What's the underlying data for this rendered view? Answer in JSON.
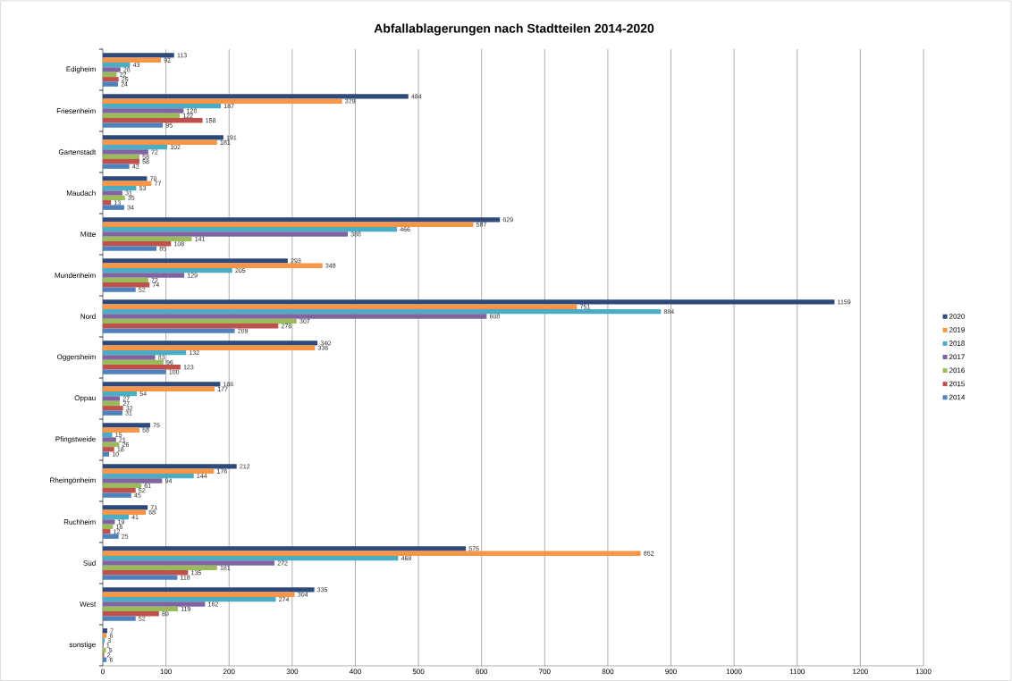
{
  "chart_data": {
    "type": "bar",
    "orientation": "horizontal",
    "title": "Abfallablagerungen nach Stadtteilen 2014-2020",
    "categories": [
      "Edigheim",
      "Friesenheim",
      "Gartenstadt",
      "Maudach",
      "Mitte",
      "Mundenheim",
      "Nord",
      "Oggersheim",
      "Oppau",
      "Pfingstweide",
      "Rheingönheim",
      "Ruchheim",
      "Süd",
      "West",
      "sonstige"
    ],
    "series": [
      {
        "name": "2020",
        "color": "#2e4a7a",
        "values": [
          113,
          484,
          191,
          70,
          629,
          293,
          1159,
          340,
          186,
          75,
          212,
          71,
          575,
          335,
          7
        ]
      },
      {
        "name": "2019",
        "color": "#f79646",
        "values": [
          92,
          379,
          181,
          77,
          587,
          348,
          751,
          336,
          177,
          58,
          176,
          68,
          852,
          304,
          6
        ]
      },
      {
        "name": "2018",
        "color": "#4bacc6",
        "values": [
          43,
          187,
          102,
          53,
          466,
          205,
          884,
          132,
          54,
          15,
          144,
          41,
          468,
          274,
          3
        ]
      },
      {
        "name": "2017",
        "color": "#8064a2",
        "values": [
          28,
          128,
          72,
          31,
          388,
          129,
          608,
          83,
          27,
          21,
          94,
          19,
          272,
          162,
          1
        ]
      },
      {
        "name": "2016",
        "color": "#9bbb59",
        "values": [
          22,
          122,
          58,
          35,
          141,
          72,
          307,
          96,
          27,
          26,
          61,
          16,
          181,
          119,
          5
        ]
      },
      {
        "name": "2015",
        "color": "#c0504d",
        "values": [
          25,
          158,
          58,
          13,
          108,
          74,
          278,
          123,
          32,
          18,
          52,
          12,
          135,
          89,
          2
        ]
      },
      {
        "name": "2014",
        "color": "#4f81bd",
        "values": [
          24,
          95,
          42,
          34,
          85,
          52,
          209,
          100,
          31,
          10,
          45,
          25,
          118,
          52,
          6
        ]
      }
    ],
    "xlim": [
      0,
      1300
    ],
    "xticks": [
      0,
      100,
      200,
      300,
      400,
      500,
      600,
      700,
      800,
      900,
      1000,
      1100,
      1200,
      1300
    ],
    "grid": "x",
    "legend": "right",
    "data_labels": true
  }
}
